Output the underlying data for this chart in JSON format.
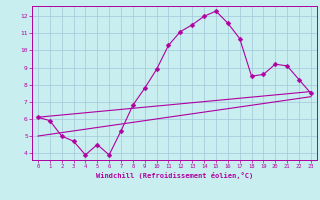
{
  "title": "",
  "xlabel": "Windchill (Refroidissement éolien,°C)",
  "bg_color": "#c8eef0",
  "grid_color": "#a0c8d8",
  "line_color": "#b000a0",
  "xlim": [
    -0.5,
    23.5
  ],
  "ylim": [
    3.6,
    12.6
  ],
  "xticks": [
    0,
    1,
    2,
    3,
    4,
    5,
    6,
    7,
    8,
    9,
    10,
    11,
    12,
    13,
    14,
    15,
    16,
    17,
    18,
    19,
    20,
    21,
    22,
    23
  ],
  "yticks": [
    4,
    5,
    6,
    7,
    8,
    9,
    10,
    11,
    12
  ],
  "line1_x": [
    0,
    1,
    2,
    3,
    4,
    5,
    6,
    7,
    8,
    9,
    10,
    11,
    12,
    13,
    14,
    15,
    16,
    17,
    18,
    19,
    20,
    21,
    22,
    23
  ],
  "line1_y": [
    6.1,
    5.9,
    5.0,
    4.7,
    3.9,
    4.5,
    3.9,
    5.3,
    6.8,
    7.8,
    8.9,
    10.3,
    11.1,
    11.5,
    12.0,
    12.3,
    11.6,
    10.7,
    8.5,
    8.6,
    9.2,
    9.1,
    8.3,
    7.5
  ],
  "line2_x": [
    0,
    23
  ],
  "line2_y": [
    6.1,
    7.6
  ],
  "line3_x": [
    0,
    23
  ],
  "line3_y": [
    5.0,
    7.3
  ],
  "markersize": 2.5
}
